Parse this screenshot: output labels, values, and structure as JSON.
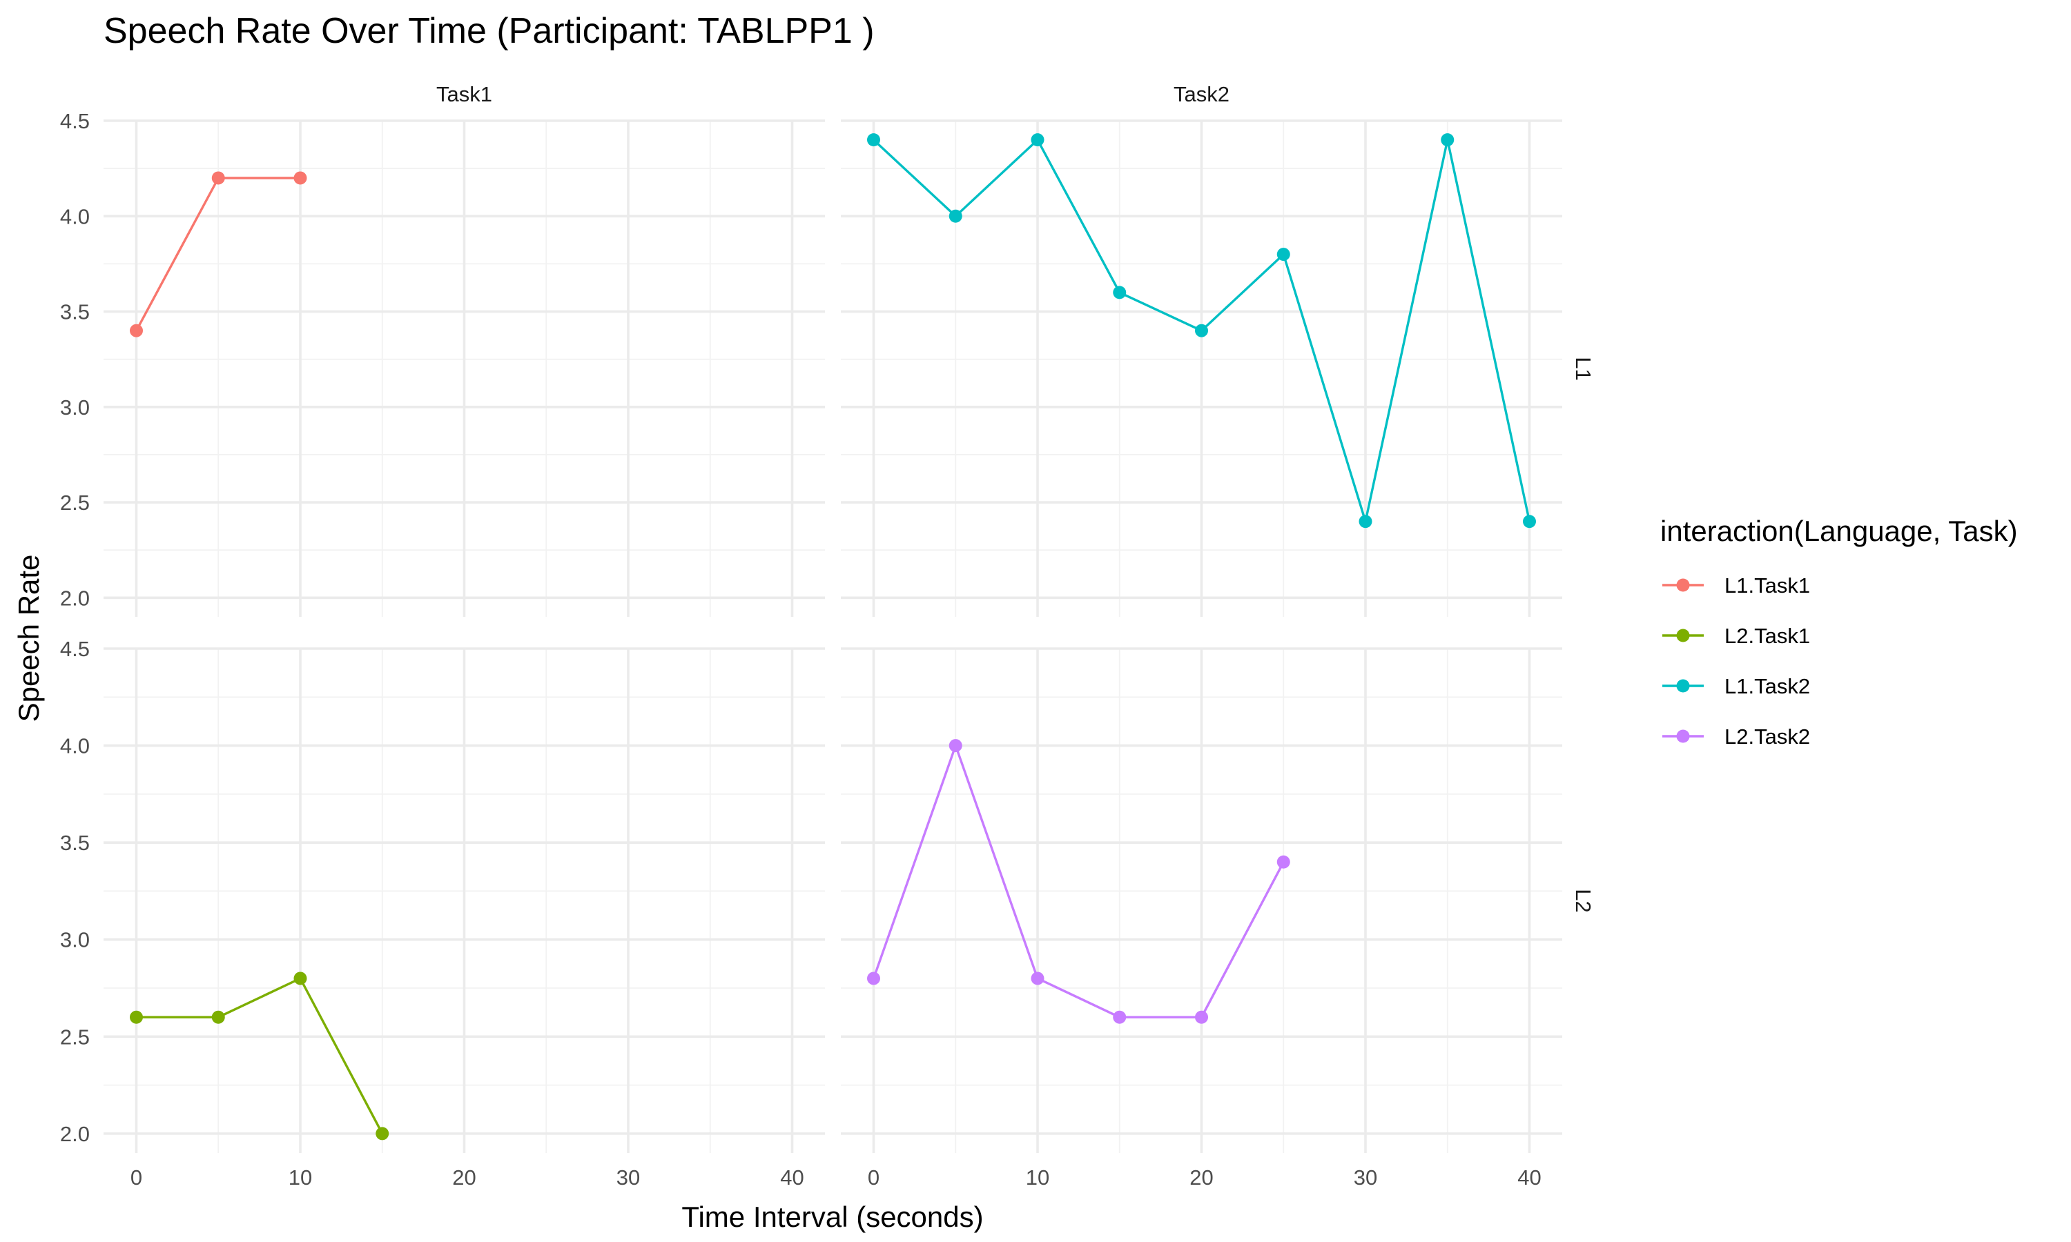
{
  "chart_data": {
    "type": "line",
    "title": "Speech Rate Over Time (Participant: TABLPP1 )",
    "xlabel": "Time Interval (seconds)",
    "ylabel": "Speech Rate",
    "xlim": [
      -2,
      42
    ],
    "ylim": [
      1.9,
      4.5
    ],
    "x_ticks": [
      0,
      10,
      20,
      30,
      40
    ],
    "y_ticks": [
      2.0,
      2.5,
      3.0,
      3.5,
      4.0,
      4.5
    ],
    "grid": true,
    "legend_title": "interaction(Language, Task)",
    "legend_position": "right",
    "facet_columns": [
      "Task1",
      "Task2"
    ],
    "facet_rows": [
      "L1",
      "L2"
    ],
    "series": [
      {
        "name": "L1.Task1",
        "color": "#F8766D",
        "facet_row": "L1",
        "facet_col": "Task1",
        "x": [
          0,
          5,
          10
        ],
        "y": [
          3.4,
          4.2,
          4.2
        ]
      },
      {
        "name": "L2.Task1",
        "color": "#7CAE00",
        "facet_row": "L2",
        "facet_col": "Task1",
        "x": [
          0,
          5,
          10,
          15
        ],
        "y": [
          2.6,
          2.6,
          2.8,
          2.0
        ]
      },
      {
        "name": "L1.Task2",
        "color": "#00BFC4",
        "facet_row": "L1",
        "facet_col": "Task2",
        "x": [
          0,
          5,
          10,
          15,
          20,
          25,
          30,
          35,
          40
        ],
        "y": [
          4.4,
          4.0,
          4.4,
          3.6,
          3.4,
          3.8,
          2.4,
          4.4,
          2.4
        ]
      },
      {
        "name": "L2.Task2",
        "color": "#C77CFF",
        "facet_row": "L2",
        "facet_col": "Task2",
        "x": [
          0,
          5,
          10,
          15,
          20,
          25
        ],
        "y": [
          2.8,
          4.0,
          2.8,
          2.6,
          2.6,
          3.4
        ]
      }
    ]
  }
}
